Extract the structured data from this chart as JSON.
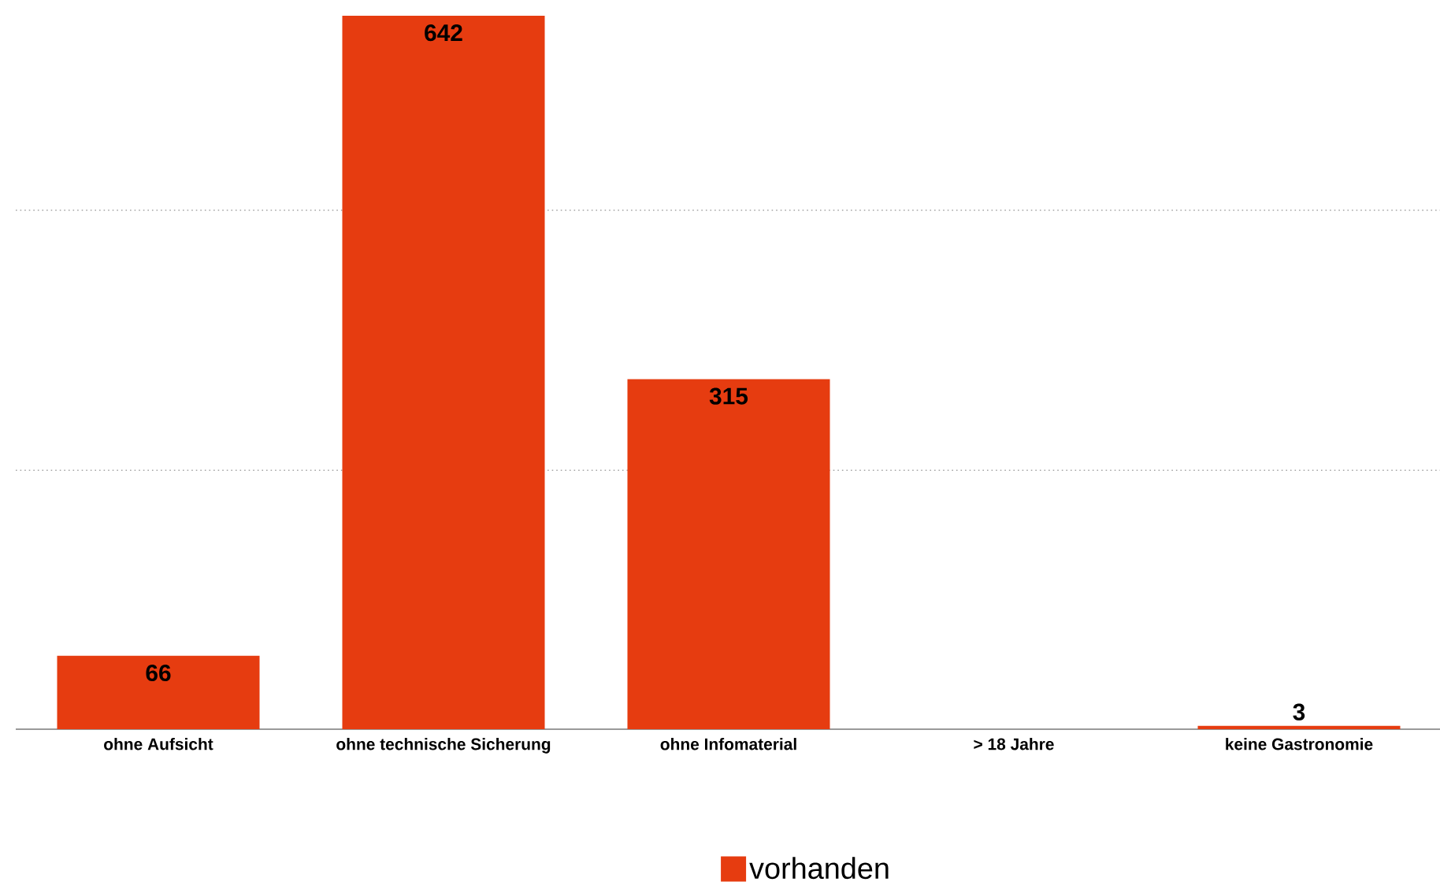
{
  "chart_data": {
    "type": "bar",
    "categories": [
      "ohne Aufsicht",
      "ohne technische Sicherung",
      "ohne Infomaterial",
      "> 18 Jahre",
      "keine Gastronomie"
    ],
    "series": [
      {
        "name": "vorhanden",
        "color": "#e63c10",
        "values": [
          66,
          642,
          315,
          null,
          3
        ],
        "value_labels": [
          "66",
          "642",
          "315",
          null,
          "3"
        ]
      }
    ],
    "ref_lines": [
      {
        "axis": "y",
        "value": 233,
        "color": "#a6a6a6",
        "line_style": "dotted"
      },
      {
        "axis": "y",
        "value": 467,
        "color": "#a6a6a6",
        "line_style": "dotted"
      }
    ],
    "tick_labels": "x",
    "legend": "bottom"
  }
}
